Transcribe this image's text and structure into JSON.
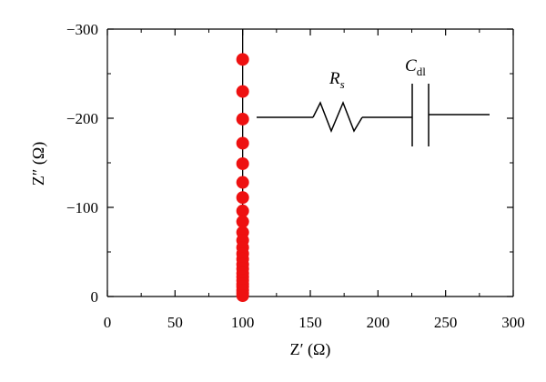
{
  "chart_data": {
    "type": "scatter",
    "title": "",
    "xlabel": "Z′ (Ω)",
    "ylabel": "Z″ (Ω)",
    "xlim": [
      0,
      300
    ],
    "ylim": [
      0,
      -300
    ],
    "xticks": [
      0,
      50,
      100,
      150,
      200,
      250,
      300
    ],
    "yticks": [
      0,
      -100,
      -200,
      -300
    ],
    "xtick_labels": [
      "0",
      "50",
      "100",
      "150",
      "200",
      "250",
      "300"
    ],
    "ytick_labels": [
      "0",
      "−100",
      "−200",
      "−300"
    ],
    "series": [
      {
        "color": "#ee1111",
        "x": [
          100,
          100,
          100,
          100,
          100,
          100,
          100,
          100,
          100,
          100,
          100,
          100,
          100,
          100,
          100,
          100,
          100,
          100,
          100,
          100,
          100,
          100,
          100,
          100
        ],
        "y": [
          -266,
          -230,
          -199,
          -172,
          -149,
          -128,
          -111,
          -96,
          -84,
          -72,
          -63,
          -55,
          -48,
          -42,
          -36,
          -31,
          -26,
          -22,
          -18,
          -14,
          -11,
          -7,
          -4,
          -1
        ]
      }
    ],
    "vertical_line_x": 100,
    "grid": false,
    "legend": "none",
    "circuit": {
      "resistor_label": "R",
      "resistor_subscript": "s",
      "capacitor_label": "C",
      "capacitor_subscript": "dl"
    }
  }
}
